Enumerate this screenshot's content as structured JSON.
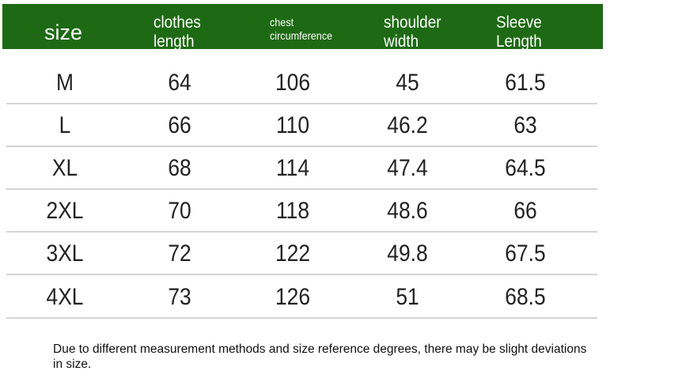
{
  "table": {
    "header_color": "#1e6a14",
    "headers": [
      "size",
      "clothes\nlength",
      "chest\ncircumference",
      "shoulder\nwidth",
      "Sleeve\nLength"
    ],
    "header_lines": [
      [
        "size"
      ],
      [
        "clothes",
        "length"
      ],
      [
        "chest",
        "circumference"
      ],
      [
        "shoulder",
        "width"
      ],
      [
        "Sleeve",
        "Length"
      ]
    ],
    "rows": [
      [
        "M",
        "64",
        "106",
        "45",
        "61.5"
      ],
      [
        "L",
        "66",
        "110",
        "46.2",
        "63"
      ],
      [
        "XL",
        "68",
        "114",
        "47.4",
        "64.5"
      ],
      [
        "2XL",
        "70",
        "118",
        "48.6",
        "66"
      ],
      [
        "3XL",
        "72",
        "122",
        "49.8",
        "67.5"
      ],
      [
        "4XL",
        "73",
        "126",
        "51",
        "68.5"
      ]
    ]
  },
  "note": "Due to different measurement methods and size reference degrees, there may be slight deviations in size."
}
